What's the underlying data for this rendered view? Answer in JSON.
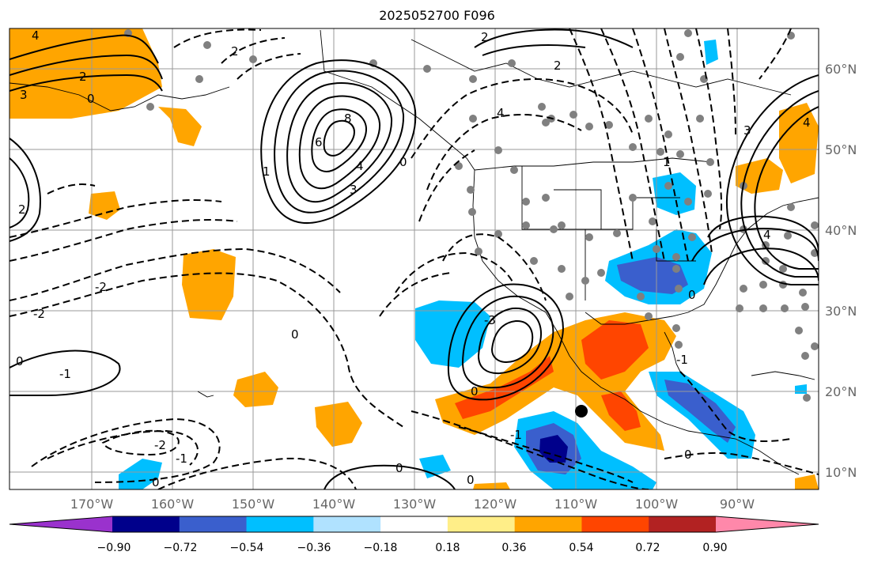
{
  "title": "2025052700 F096",
  "map": {
    "lon_labels": [
      "170°W",
      "160°W",
      "150°W",
      "140°W",
      "130°W",
      "120°W",
      "110°W",
      "100°W",
      "90°W"
    ],
    "lat_labels": [
      "60°N",
      "50°N",
      "40°N",
      "30°N",
      "20°N",
      "10°N"
    ],
    "contour_labels": [
      "4",
      "2",
      "3",
      "0",
      "8",
      "6",
      "4",
      "1",
      "3",
      "0",
      "2",
      "2",
      "-2",
      "-2",
      "-1",
      "0",
      "-2",
      "-1",
      "0",
      "0",
      "-3",
      "2",
      "0",
      "-1",
      "2",
      "4",
      "0",
      "0",
      "-1",
      "0",
      "4",
      "1",
      "3",
      "0",
      "4"
    ]
  },
  "colorbar": {
    "colors": [
      "#9a32cd",
      "#00008b",
      "#3a5fcd",
      "#00bfff",
      "#b0e2ff",
      "#ffffff",
      "#ffee88",
      "#ffa500",
      "#ff4500",
      "#b22222",
      "#ff88aa"
    ],
    "tick_labels": [
      "−0.90",
      "−0.72",
      "−0.54",
      "−0.36",
      "−0.18",
      "0.18",
      "0.36",
      "0.54",
      "0.72",
      "0.90"
    ]
  },
  "colors": {
    "orange": "#ffa500",
    "red": "#ff4500",
    "light_blue": "#00bfff",
    "mid_blue": "#3a5fcd",
    "navy": "#00008b",
    "station": "#808080",
    "grid": "#999999"
  }
}
